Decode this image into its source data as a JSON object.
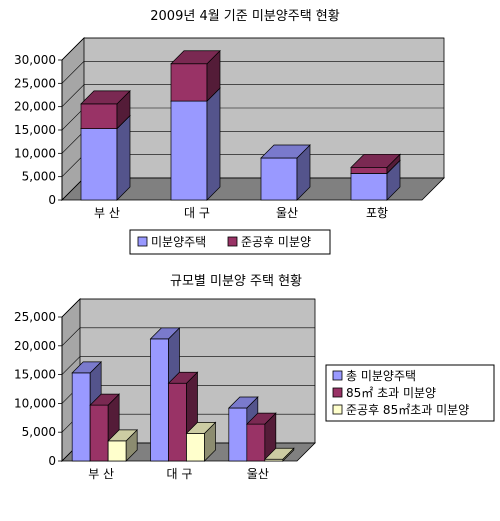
{
  "chart_data": [
    {
      "type": "bar",
      "title": "2009년 4월 기준 미분양주택 현황",
      "stacked": true,
      "categories": [
        "부 산",
        "대 구",
        "울산",
        "포항"
      ],
      "series": [
        {
          "name": "미분양주택",
          "values": [
            15300,
            21200,
            9000,
            5700
          ],
          "color": "#9999ff"
        },
        {
          "name": "준공후 미분양",
          "values": [
            5300,
            8000,
            0,
            1300
          ],
          "color": "#993366"
        }
      ],
      "ylim": [
        0,
        30000
      ],
      "yticks": [
        "30,000",
        "25,000",
        "20,000",
        "15,000",
        "10,000",
        "5,000",
        "0"
      ],
      "grid": true,
      "legend": "bottom"
    },
    {
      "type": "bar",
      "title": "규모별 미분양 주택 현황",
      "stacked": false,
      "categories": [
        "부 산",
        "대 구",
        "울산"
      ],
      "series": [
        {
          "name": "총 미분양주택",
          "values": [
            15300,
            21200,
            9200
          ],
          "color": "#9999ff"
        },
        {
          "name": "85㎡ 초과 미분양",
          "values": [
            9700,
            13500,
            6400
          ],
          "color": "#993366"
        },
        {
          "name": "준공후 85㎡초과 미분양",
          "values": [
            3500,
            4800,
            300
          ],
          "color": "#ffffcc"
        }
      ],
      "ylim": [
        0,
        25000
      ],
      "yticks": [
        "25,000",
        "20,000",
        "15,000",
        "10,000",
        "5,000",
        "0"
      ],
      "grid": true,
      "legend": "right"
    }
  ]
}
